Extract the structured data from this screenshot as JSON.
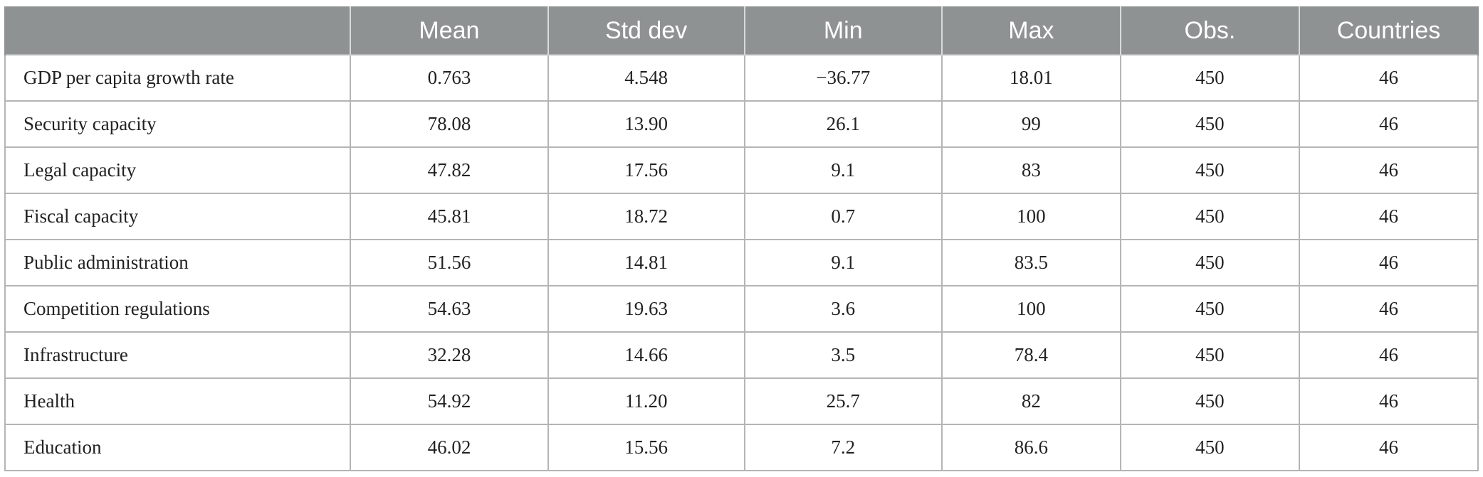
{
  "table": {
    "headers": [
      "",
      "Mean",
      "Std dev",
      "Min",
      "Max",
      "Obs.",
      "Countries"
    ],
    "rows": [
      [
        "GDP per capita growth rate",
        "0.763",
        "4.548",
        "−36.77",
        "18.01",
        "450",
        "46"
      ],
      [
        "Security capacity",
        "78.08",
        "13.90",
        "26.1",
        "99",
        "450",
        "46"
      ],
      [
        "Legal capacity",
        "47.82",
        "17.56",
        "9.1",
        "83",
        "450",
        "46"
      ],
      [
        "Fiscal capacity",
        "45.81",
        "18.72",
        "0.7",
        "100",
        "450",
        "46"
      ],
      [
        "Public administration",
        "51.56",
        "14.81",
        "9.1",
        "83.5",
        "450",
        "46"
      ],
      [
        "Competition regulations",
        "54.63",
        "19.63",
        "3.6",
        "100",
        "450",
        "46"
      ],
      [
        "Infrastructure",
        "32.28",
        "14.66",
        "3.5",
        "78.4",
        "450",
        "46"
      ],
      [
        "Health",
        "54.92",
        "11.20",
        "25.7",
        "82",
        "450",
        "46"
      ],
      [
        "Education",
        "46.02",
        "15.56",
        "7.2",
        "86.6",
        "450",
        "46"
      ]
    ]
  },
  "colors": {
    "header_background": "#8f9293",
    "header_text": "#ffffff",
    "grid_lines": "#b3b5b6",
    "body_text": "#222222"
  }
}
